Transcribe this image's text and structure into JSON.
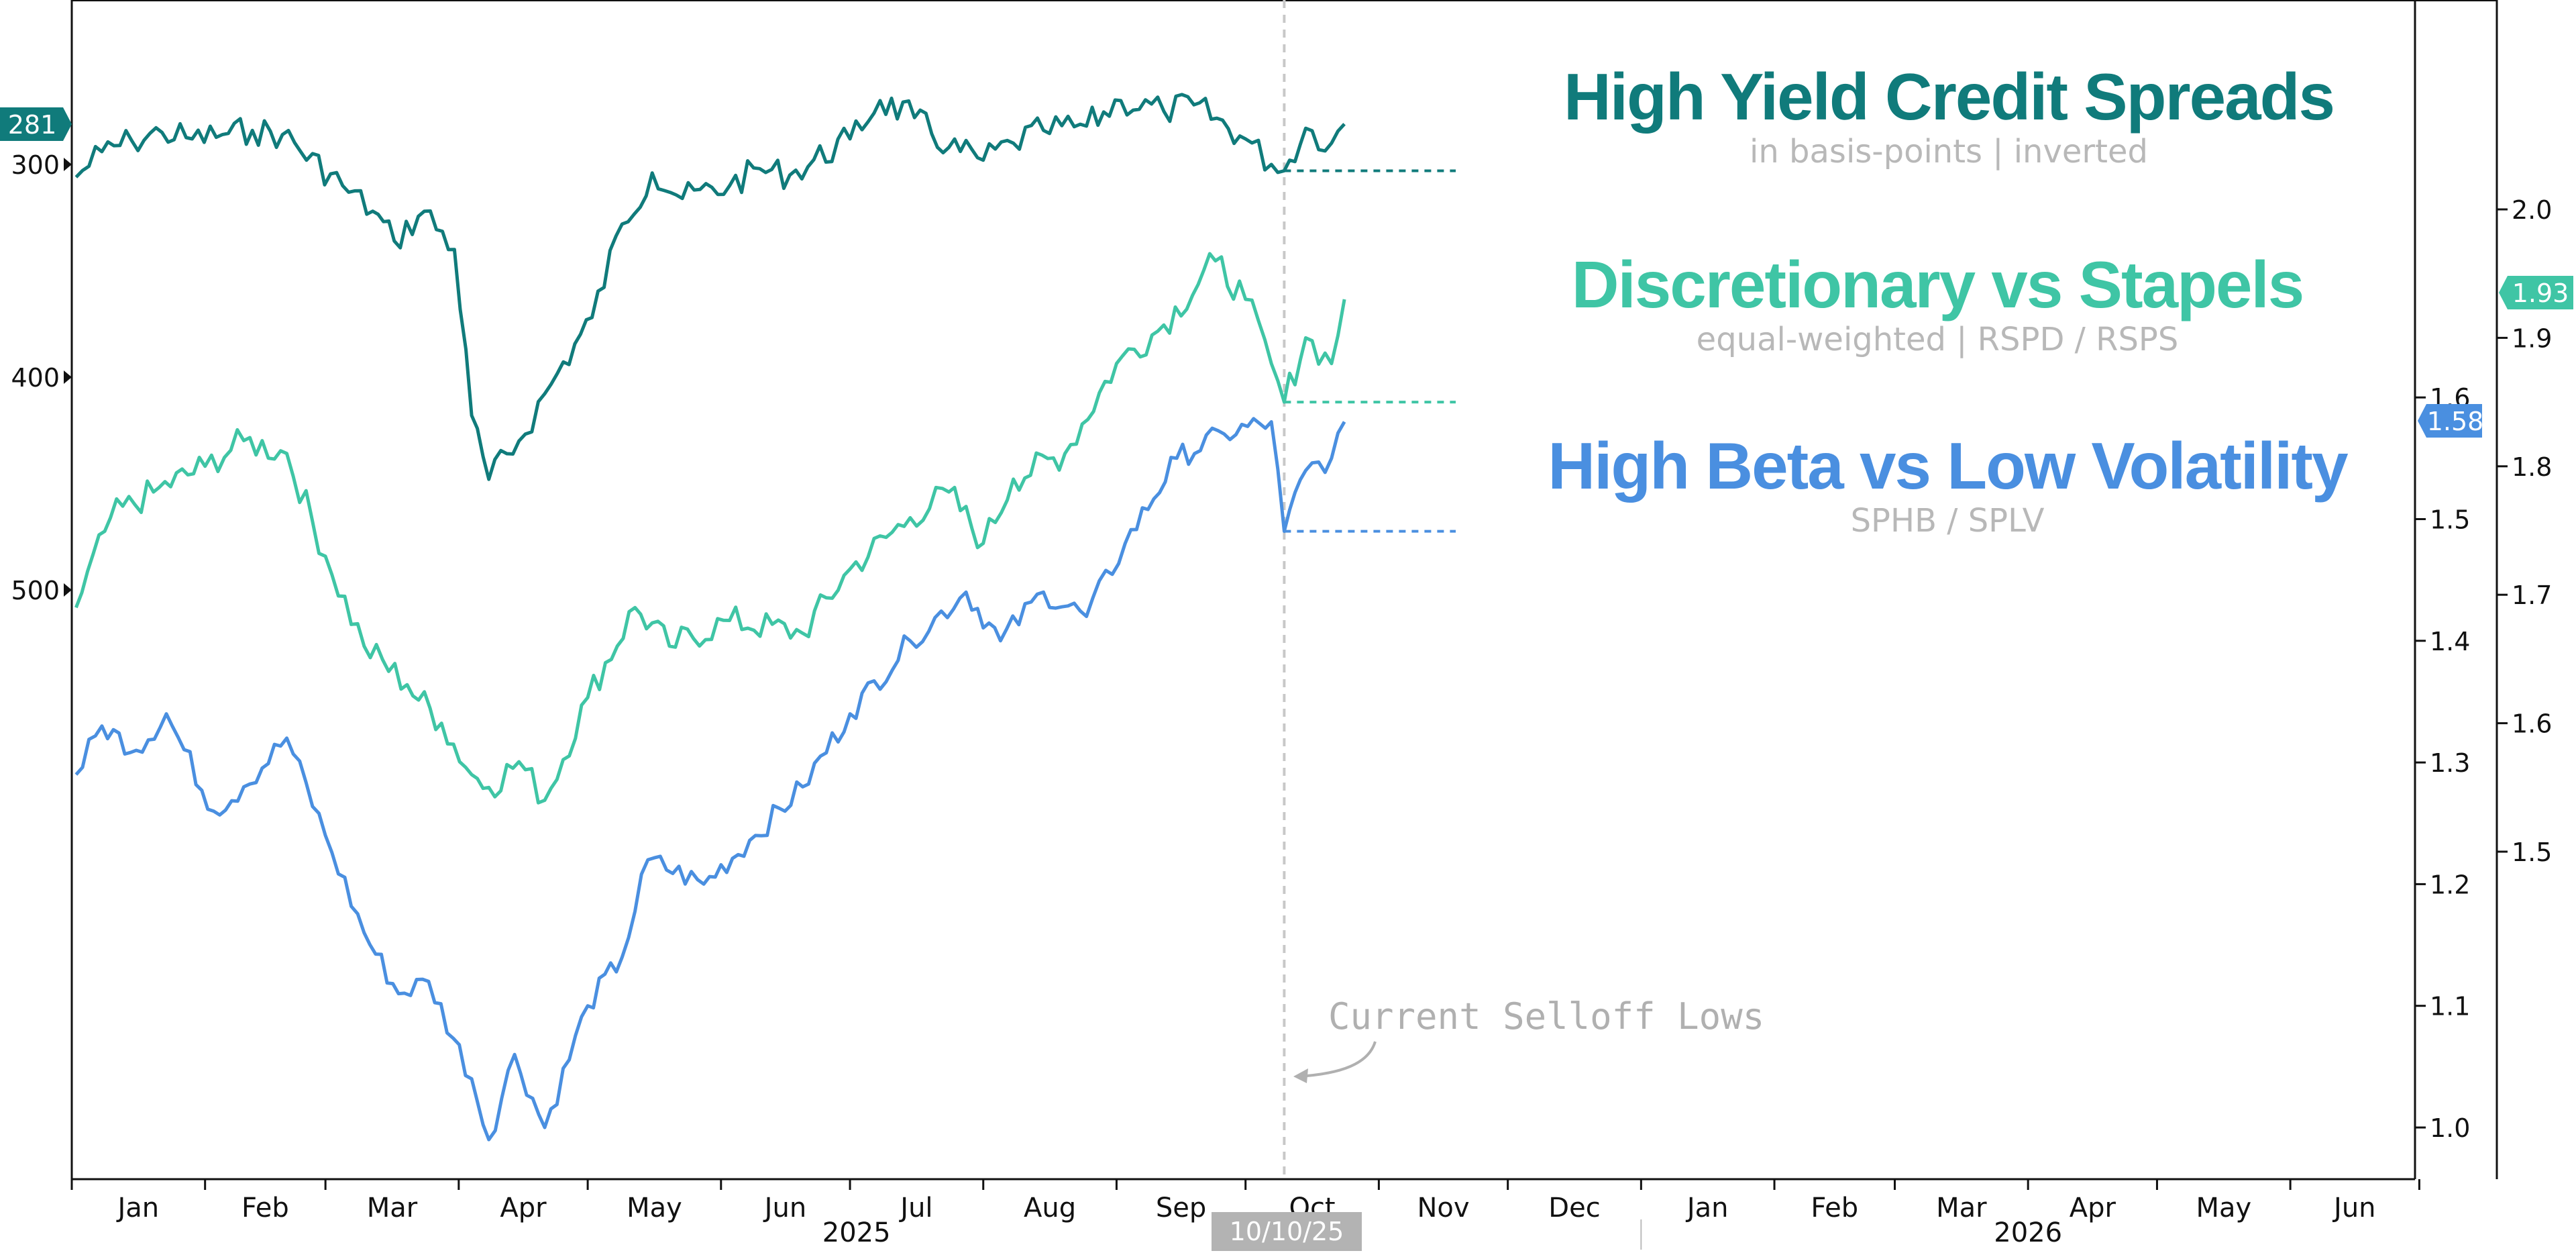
{
  "colors": {
    "hy": "#107b7b",
    "disc": "#3fc5a5",
    "beta": "#4a8fe0",
    "axis": "#111111",
    "guide": "#c8c8c8",
    "date_tag_bg": "#b3b3b3"
  },
  "titles": {
    "hy": {
      "title": "High Yield Credit Spreads",
      "subtitle": "in basis-points | inverted"
    },
    "disc": {
      "title": "Discretionary vs Stapels",
      "subtitle": "equal-weighted | RSPD / RSPS"
    },
    "beta": {
      "title": "High Beta vs Low Volatility",
      "subtitle": "SPHB / SPLV"
    }
  },
  "annotation": {
    "text": "Current Selloff Lows",
    "date_tag": "10/10/25"
  },
  "x_axis": {
    "months": [
      "Jan",
      "Feb",
      "Mar",
      "Apr",
      "May",
      "Jun",
      "Jul",
      "Aug",
      "Sep",
      "Oct",
      "Nov",
      "Dec",
      "Jan",
      "Feb",
      "Mar",
      "Apr",
      "May",
      "Jun"
    ],
    "years": [
      "2025",
      "2026"
    ]
  },
  "left_axis": {
    "label": "",
    "inverted": true,
    "ticks": [
      "300",
      "400",
      "500"
    ],
    "tick_values": [
      300,
      400,
      500
    ],
    "last_value": "281"
  },
  "mid_axis": {
    "ticks": [
      "1.0",
      "1.1",
      "1.2",
      "1.3",
      "1.4",
      "1.5",
      "1.6"
    ],
    "tick_values": [
      1.0,
      1.1,
      1.2,
      1.3,
      1.4,
      1.5,
      1.6
    ],
    "last_value": "1.58"
  },
  "right_axis": {
    "ticks": [
      "1.5",
      "1.6",
      "1.7",
      "1.8",
      "1.9",
      "2.0"
    ],
    "tick_values": [
      1.5,
      1.6,
      1.7,
      1.8,
      1.9,
      2.0
    ],
    "last_value": "1.93"
  },
  "chart_data": {
    "type": "line",
    "x_start": "2025-01-01",
    "x_end": "2026-06-30",
    "selloff_low_date": "2025-10-10",
    "series": [
      {
        "name": "High Yield Credit Spreads",
        "axis": "left (inverted)",
        "points": [
          [
            "2025-01-02",
            306
          ],
          [
            "2025-01-08",
            294
          ],
          [
            "2025-01-15",
            289
          ],
          [
            "2025-01-22",
            285
          ],
          [
            "2025-01-29",
            288
          ],
          [
            "2025-02-05",
            286
          ],
          [
            "2025-02-12",
            284
          ],
          [
            "2025-02-19",
            286
          ],
          [
            "2025-03-05",
            310
          ],
          [
            "2025-03-12",
            322
          ],
          [
            "2025-03-17",
            336
          ],
          [
            "2025-03-24",
            322
          ],
          [
            "2025-03-31",
            340
          ],
          [
            "2025-04-04",
            418
          ],
          [
            "2025-04-08",
            448
          ],
          [
            "2025-04-15",
            430
          ],
          [
            "2025-04-24",
            398
          ],
          [
            "2025-05-02",
            372
          ],
          [
            "2025-05-09",
            328
          ],
          [
            "2025-05-16",
            304
          ],
          [
            "2025-05-23",
            316
          ],
          [
            "2025-06-03",
            310
          ],
          [
            "2025-06-10",
            302
          ],
          [
            "2025-06-17",
            305
          ],
          [
            "2025-07-01",
            288
          ],
          [
            "2025-07-08",
            270
          ],
          [
            "2025-07-16",
            278
          ],
          [
            "2025-07-24",
            292
          ],
          [
            "2025-08-01",
            298
          ],
          [
            "2025-08-08",
            290
          ],
          [
            "2025-08-15",
            284
          ],
          [
            "2025-08-25",
            282
          ],
          [
            "2025-09-02",
            270
          ],
          [
            "2025-09-12",
            275
          ],
          [
            "2025-09-19",
            272
          ],
          [
            "2025-10-01",
            288
          ],
          [
            "2025-10-07",
            300
          ],
          [
            "2025-10-10",
            303
          ],
          [
            "2025-10-15",
            283
          ],
          [
            "2025-10-21",
            290
          ],
          [
            "2025-10-24",
            281
          ]
        ]
      },
      {
        "name": "Discretionary vs Stapels",
        "axis": "right",
        "points": [
          [
            "2025-01-02",
            1.69
          ],
          [
            "2025-01-10",
            1.76
          ],
          [
            "2025-01-20",
            1.78
          ],
          [
            "2025-02-01",
            1.8
          ],
          [
            "2025-02-10",
            1.82
          ],
          [
            "2025-02-20",
            1.81
          ],
          [
            "2025-03-01",
            1.73
          ],
          [
            "2025-03-10",
            1.66
          ],
          [
            "2025-03-20",
            1.63
          ],
          [
            "2025-03-28",
            1.6
          ],
          [
            "2025-04-04",
            1.56
          ],
          [
            "2025-04-08",
            1.55
          ],
          [
            "2025-04-15",
            1.57
          ],
          [
            "2025-04-21",
            1.54
          ],
          [
            "2025-05-01",
            1.62
          ],
          [
            "2025-05-12",
            1.69
          ],
          [
            "2025-05-20",
            1.66
          ],
          [
            "2025-06-03",
            1.68
          ],
          [
            "2025-06-20",
            1.67
          ],
          [
            "2025-07-01",
            1.72
          ],
          [
            "2025-07-15",
            1.76
          ],
          [
            "2025-07-24",
            1.78
          ],
          [
            "2025-08-01",
            1.74
          ],
          [
            "2025-08-08",
            1.79
          ],
          [
            "2025-08-20",
            1.81
          ],
          [
            "2025-09-01",
            1.88
          ],
          [
            "2025-09-12",
            1.91
          ],
          [
            "2025-09-24",
            1.96
          ],
          [
            "2025-10-01",
            1.93
          ],
          [
            "2025-10-07",
            1.88
          ],
          [
            "2025-10-10",
            1.85
          ],
          [
            "2025-10-15",
            1.9
          ],
          [
            "2025-10-21",
            1.88
          ],
          [
            "2025-10-24",
            1.93
          ]
        ]
      },
      {
        "name": "High Beta vs Low Volatility",
        "axis": "middle",
        "points": [
          [
            "2025-01-02",
            1.29
          ],
          [
            "2025-01-08",
            1.33
          ],
          [
            "2025-01-16",
            1.31
          ],
          [
            "2025-01-23",
            1.34
          ],
          [
            "2025-02-03",
            1.26
          ],
          [
            "2025-02-10",
            1.28
          ],
          [
            "2025-02-20",
            1.32
          ],
          [
            "2025-03-01",
            1.24
          ],
          [
            "2025-03-10",
            1.16
          ],
          [
            "2025-03-18",
            1.11
          ],
          [
            "2025-03-25",
            1.12
          ],
          [
            "2025-04-04",
            1.04
          ],
          [
            "2025-04-08",
            0.99
          ],
          [
            "2025-04-14",
            1.06
          ],
          [
            "2025-04-21",
            1.0
          ],
          [
            "2025-05-01",
            1.1
          ],
          [
            "2025-05-09",
            1.14
          ],
          [
            "2025-05-15",
            1.22
          ],
          [
            "2025-05-28",
            1.2
          ],
          [
            "2025-06-09",
            1.24
          ],
          [
            "2025-06-20",
            1.28
          ],
          [
            "2025-07-01",
            1.34
          ],
          [
            "2025-07-15",
            1.4
          ],
          [
            "2025-07-28",
            1.44
          ],
          [
            "2025-08-05",
            1.4
          ],
          [
            "2025-08-15",
            1.44
          ],
          [
            "2025-08-25",
            1.42
          ],
          [
            "2025-09-03",
            1.48
          ],
          [
            "2025-09-15",
            1.55
          ],
          [
            "2025-09-26",
            1.57
          ],
          [
            "2025-10-07",
            1.58
          ],
          [
            "2025-10-10",
            1.49
          ],
          [
            "2025-10-15",
            1.54
          ],
          [
            "2025-10-21",
            1.55
          ],
          [
            "2025-10-24",
            1.58
          ]
        ]
      }
    ],
    "selloff_low_levels": {
      "High Yield Credit Spreads": 303,
      "Discretionary vs Stapels": 1.85,
      "High Beta vs Low Volatility": 1.49
    },
    "grid": false,
    "legend": "inline titles at top-right"
  }
}
